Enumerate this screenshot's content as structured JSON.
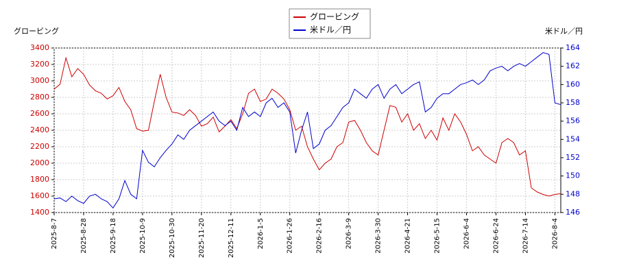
{
  "chart_data": {
    "type": "line",
    "ylabel": "グロービング",
    "y2label": "米ドル／円",
    "categories": [
      "2025-8-7",
      null,
      null,
      null,
      null,
      "2025-8-28",
      null,
      null,
      null,
      null,
      "2025-9-18",
      null,
      null,
      null,
      null,
      "2025-10-9",
      null,
      null,
      null,
      null,
      "2025-10-30",
      null,
      null,
      null,
      null,
      "2025-11-20",
      null,
      null,
      null,
      null,
      "2025-12-11",
      null,
      null,
      null,
      null,
      "2026-1-5",
      null,
      null,
      null,
      null,
      "2026-1-26",
      null,
      null,
      null,
      null,
      "2026-2-16",
      null,
      null,
      null,
      null,
      "2026-3-9",
      null,
      null,
      null,
      null,
      "2026-3-30",
      null,
      null,
      null,
      null,
      "2026-4-21",
      null,
      null,
      null,
      null,
      "2026-5-15",
      null,
      null,
      null,
      null,
      "2026-6-4",
      null,
      null,
      null,
      null,
      "2026-6-24",
      null,
      null,
      null,
      null,
      "2026-7-14",
      null,
      null,
      null,
      null,
      "2026-8-4",
      null
    ],
    "series": [
      {
        "name": "グロービング",
        "color": "#cc0000",
        "values": [
          2900,
          2960,
          3280,
          3050,
          3150,
          3080,
          2950,
          2880,
          2850,
          2780,
          2820,
          2920,
          2750,
          2650,
          2420,
          2390,
          2400,
          2750,
          3080,
          2800,
          2620,
          2610,
          2580,
          2650,
          2580,
          2450,
          2480,
          2560,
          2380,
          2450,
          2530,
          2420,
          2600,
          2850,
          2900,
          2750,
          2780,
          2900,
          2850,
          2780,
          2650,
          2400,
          2450,
          2200,
          2050,
          1920,
          2000,
          2050,
          2200,
          2250,
          2500,
          2520,
          2400,
          2250,
          2150,
          2100,
          2400,
          2700,
          2680,
          2500,
          2600,
          2400,
          2480,
          2300,
          2400,
          2280,
          2550,
          2400,
          2600,
          2500,
          2350,
          2150,
          2200,
          2100,
          2050,
          2000,
          2250,
          2300,
          2250,
          2100,
          2150,
          1700,
          1650,
          1620,
          1600,
          1620,
          1630
        ]
      },
      {
        "name": "米ドル／円",
        "color": "#0000cc",
        "axis": "y2",
        "values": [
          147.5,
          147.6,
          147.2,
          147.8,
          147.3,
          147.0,
          147.8,
          148,
          147.5,
          147.2,
          146.5,
          147.5,
          149.5,
          148,
          147.5,
          152.8,
          151.5,
          151,
          152,
          152.8,
          153.5,
          154.5,
          154,
          155,
          155.5,
          156,
          156.5,
          157,
          156,
          155.5,
          156,
          155,
          157.5,
          156.5,
          157,
          156.5,
          158,
          158.5,
          157.5,
          158,
          157,
          152.5,
          155,
          157,
          153,
          153.5,
          155,
          155.5,
          156.5,
          157.5,
          158,
          159.5,
          159,
          158.5,
          159.5,
          160,
          158.5,
          159.5,
          160,
          159,
          159.5,
          160,
          160.3,
          157,
          157.5,
          158.5,
          159,
          159,
          159.5,
          160,
          160.2,
          160.5,
          160,
          160.5,
          161.5,
          161.8,
          162,
          161.5,
          162,
          162.3,
          162,
          162.5,
          163,
          163.5,
          163.3,
          158,
          157.8
        ]
      }
    ],
    "ylim": [
      1400,
      3400
    ],
    "yticks": [
      1400,
      1600,
      1800,
      2000,
      2200,
      2400,
      2600,
      2800,
      3000,
      3200,
      3400
    ],
    "y2lim": [
      146,
      164
    ],
    "y2ticks": [
      146,
      148,
      150,
      152,
      154,
      156,
      158,
      160,
      162,
      164
    ],
    "grid": true
  }
}
